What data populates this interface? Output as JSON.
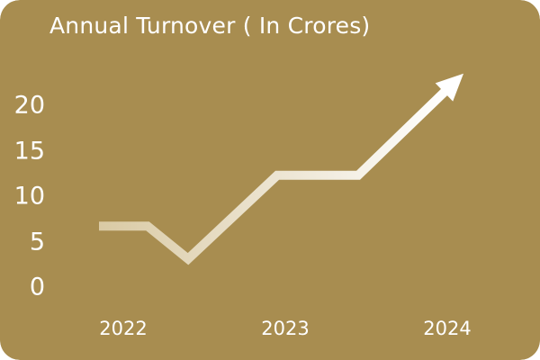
{
  "chart_data": {
    "type": "line",
    "title": "Annual Turnover ( In Crores)",
    "xlabel": "",
    "ylabel": "",
    "x_tick_labels": [
      "2022",
      "2023",
      "2024"
    ],
    "y_tick_labels": [
      "20",
      "15",
      "10",
      "5",
      "0"
    ],
    "ylim": [
      0,
      20
    ],
    "xlim": [
      2022,
      2024
    ],
    "grid": false,
    "legend": "none",
    "series": [
      {
        "x": [
          2021.85,
          2022.15,
          2022.4,
          2022.95,
          2023.45,
          2024.1
        ],
        "y": [
          6.7,
          6.7,
          3.1,
          12.3,
          12.3,
          23.5
        ],
        "marker": "arrow-end"
      }
    ]
  },
  "colors": {
    "background": "#A88D50",
    "line_start": "#D9C9A3",
    "line_end": "#FFFFFF",
    "text": "#FFFFFF"
  }
}
